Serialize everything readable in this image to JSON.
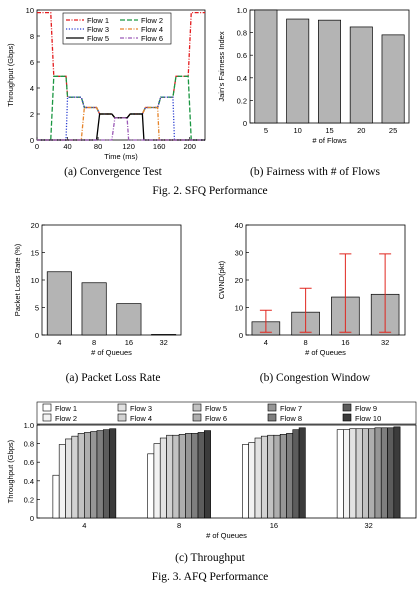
{
  "captions": {
    "fig2a": "(a) Convergence Test",
    "fig2b": "(b)  Fairness with # of Flows",
    "fig2": "Fig. 2.   SFQ Performance",
    "fig3a": "(a) Packet Loss Rate",
    "fig3b": "(b) Congestion Window",
    "fig3c": "(c) Throughput",
    "fig3": "Fig. 3.   AFQ Performance"
  },
  "chart_data": [
    {
      "id": "convergence",
      "type": "line",
      "xlabel": "Time (ms)",
      "ylabel": "Throughput (Gbps)",
      "xlim": [
        0,
        220
      ],
      "ylim": [
        0,
        10
      ],
      "xticks": [
        "0",
        "40",
        "80",
        "120",
        "160",
        "200"
      ],
      "yticks": [
        "0",
        "2",
        "4",
        "6",
        "8",
        "10"
      ],
      "legend_position": "top-center",
      "series": [
        {
          "name": "Flow 1",
          "color": "#e31a1c",
          "style": "dashdot",
          "x": [
            0,
            18,
            22,
            38,
            40,
            58,
            62,
            78,
            82,
            98,
            102,
            118,
            122,
            138,
            142,
            158,
            162,
            178,
            182,
            198,
            202,
            220
          ],
          "y": [
            9.8,
            9.8,
            4.9,
            4.9,
            3.3,
            3.3,
            2.5,
            2.5,
            2.0,
            2.0,
            1.7,
            1.7,
            2.0,
            2.0,
            2.5,
            2.5,
            3.3,
            3.3,
            4.9,
            4.9,
            9.8,
            9.8
          ]
        },
        {
          "name": "Flow 2",
          "color": "#1a9641",
          "style": "dashed",
          "x": [
            0,
            18,
            22,
            38,
            40,
            58,
            62,
            78,
            82,
            98,
            102,
            118,
            122,
            138,
            142,
            158,
            162,
            178,
            182,
            198,
            202,
            220
          ],
          "y": [
            0,
            0,
            4.9,
            4.9,
            3.3,
            3.3,
            2.5,
            2.5,
            2.0,
            2.0,
            1.7,
            1.7,
            2.0,
            2.0,
            2.5,
            2.5,
            3.3,
            3.3,
            4.9,
            4.9,
            0,
            0
          ]
        },
        {
          "name": "Flow 3",
          "color": "#2c3fd1",
          "style": "dotted",
          "x": [
            0,
            38,
            40,
            58,
            62,
            78,
            82,
            98,
            102,
            118,
            122,
            138,
            142,
            158,
            162,
            178,
            180,
            220
          ],
          "y": [
            0,
            0,
            3.3,
            3.3,
            2.5,
            2.5,
            2.0,
            2.0,
            1.7,
            1.7,
            2.0,
            2.0,
            2.5,
            2.5,
            3.3,
            3.3,
            0,
            0
          ]
        },
        {
          "name": "Flow 4",
          "color": "#e6842a",
          "style": "dashdot",
          "x": [
            0,
            58,
            62,
            78,
            82,
            98,
            102,
            118,
            122,
            138,
            142,
            158,
            160,
            220
          ],
          "y": [
            0,
            0,
            2.5,
            2.5,
            2.0,
            2.0,
            1.7,
            1.7,
            2.0,
            2.0,
            2.5,
            2.5,
            0,
            0
          ]
        },
        {
          "name": "Flow 5",
          "color": "#000000",
          "style": "solid",
          "x": [
            0,
            78,
            82,
            98,
            102,
            118,
            122,
            138,
            140,
            220
          ],
          "y": [
            0,
            0,
            2.0,
            2.0,
            1.7,
            1.7,
            2.0,
            2.0,
            0,
            0
          ]
        },
        {
          "name": "Flow 6",
          "color": "#9b59b6",
          "style": "dashdot",
          "x": [
            0,
            98,
            102,
            118,
            120,
            220
          ],
          "y": [
            0,
            0,
            1.7,
            1.7,
            0,
            0
          ]
        }
      ]
    },
    {
      "id": "fairness",
      "type": "bar",
      "xlabel": "# of Flows",
      "ylabel": "Jain's Fairness Index",
      "categories": [
        "5",
        "10",
        "15",
        "20",
        "25"
      ],
      "values": [
        1.0,
        0.92,
        0.91,
        0.85,
        0.78
      ],
      "ylim": [
        0,
        1.0
      ],
      "yticks": [
        "0",
        "0.2",
        "0.4",
        "0.6",
        "0.8",
        "1.0"
      ]
    },
    {
      "id": "lossrate",
      "type": "bar",
      "xlabel": "# of Queues",
      "ylabel": "Packet Loss Rate (%)",
      "categories": [
        "4",
        "8",
        "16",
        "32"
      ],
      "values": [
        11.5,
        9.5,
        5.7,
        0.1
      ],
      "ylim": [
        0,
        20
      ],
      "yticks": [
        "0",
        "5",
        "10",
        "15",
        "20"
      ]
    },
    {
      "id": "cwnd",
      "type": "bar",
      "xlabel": "# of Queues",
      "ylabel": "CWND(pkt)",
      "categories": [
        "4",
        "8",
        "16",
        "32"
      ],
      "values": [
        4.8,
        8.3,
        13.8,
        14.8
      ],
      "err_low": [
        1,
        1,
        1,
        1
      ],
      "err_high": [
        9,
        17,
        29.5,
        29.5
      ],
      "ylim": [
        0,
        40
      ],
      "yticks": [
        "0",
        "10",
        "20",
        "30",
        "40"
      ]
    },
    {
      "id": "throughput",
      "type": "bar",
      "xlabel": "# of Queues",
      "ylabel": "Throughput (Gbps)",
      "categories": [
        "4",
        "8",
        "16",
        "32"
      ],
      "ylim": [
        0,
        1.0
      ],
      "yticks": [
        "0",
        "0.2",
        "0.4",
        "0.6",
        "0.8",
        "1.0"
      ],
      "legend_position": "top",
      "series": [
        {
          "name": "Flow 1",
          "color": "#ffffff",
          "values": [
            0.46,
            0.69,
            0.79,
            0.95
          ]
        },
        {
          "name": "Flow 2",
          "color": "#f2f2f2",
          "values": [
            0.79,
            0.8,
            0.81,
            0.95
          ]
        },
        {
          "name": "Flow 3",
          "color": "#e2e2e2",
          "values": [
            0.85,
            0.86,
            0.86,
            0.96
          ]
        },
        {
          "name": "Flow 4",
          "color": "#d2d2d2",
          "values": [
            0.88,
            0.89,
            0.88,
            0.96
          ]
        },
        {
          "name": "Flow 5",
          "color": "#c2c2c2",
          "values": [
            0.91,
            0.89,
            0.89,
            0.96
          ]
        },
        {
          "name": "Flow 6",
          "color": "#aeaeae",
          "values": [
            0.92,
            0.9,
            0.89,
            0.96
          ]
        },
        {
          "name": "Flow 7",
          "color": "#969696",
          "values": [
            0.93,
            0.91,
            0.9,
            0.97
          ]
        },
        {
          "name": "Flow 8",
          "color": "#7e7e7e",
          "values": [
            0.94,
            0.91,
            0.91,
            0.97
          ]
        },
        {
          "name": "Flow 9",
          "color": "#5c5c5c",
          "values": [
            0.95,
            0.92,
            0.95,
            0.97
          ]
        },
        {
          "name": "Flow 10",
          "color": "#3b3b3b",
          "values": [
            0.96,
            0.94,
            0.97,
            0.98
          ]
        }
      ]
    }
  ]
}
